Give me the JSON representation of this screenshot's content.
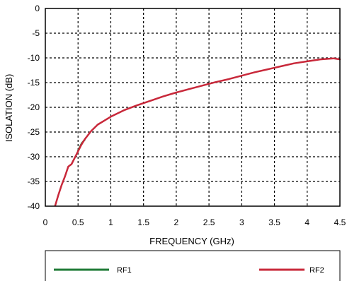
{
  "chart_data": {
    "type": "line",
    "title": "",
    "xlabel": "FREQUENCY (GHz)",
    "ylabel": "ISOLATION (dB)",
    "xlim": [
      0,
      4.5
    ],
    "ylim": [
      -40,
      0
    ],
    "xticks": [
      "0",
      "0.5",
      "1",
      "1.5",
      "2",
      "2.5",
      "3",
      "3.5",
      "4",
      "4.5"
    ],
    "yticks": [
      "0",
      "-5",
      "-10",
      "-15",
      "-20",
      "-25",
      "-30",
      "-35",
      "-40"
    ],
    "grid": true,
    "legend_position": "bottom",
    "series": [
      {
        "name": "RF1",
        "color": "#1e7a35",
        "x": [
          0.5,
          0.52,
          0.54,
          0.56,
          0.58,
          0.6
        ],
        "y": [
          -28.8,
          -28.2,
          -27.7,
          -27.2,
          -26.9,
          -26.6
        ]
      },
      {
        "name": "RF2",
        "color": "#c8283a",
        "x": [
          0.15,
          0.2,
          0.25,
          0.3,
          0.35,
          0.4,
          0.45,
          0.5,
          0.55,
          0.6,
          0.7,
          0.8,
          0.9,
          1.0,
          1.2,
          1.4,
          1.6,
          1.8,
          2.0,
          2.2,
          2.4,
          2.6,
          2.8,
          3.0,
          3.2,
          3.4,
          3.6,
          3.8,
          4.0,
          4.2,
          4.4,
          4.5
        ],
        "y": [
          -39.9,
          -37.7,
          -35.7,
          -34.0,
          -32.0,
          -31.5,
          -30.2,
          -28.9,
          -27.6,
          -26.5,
          -24.8,
          -23.5,
          -22.7,
          -21.9,
          -20.6,
          -19.6,
          -18.7,
          -17.8,
          -17.0,
          -16.3,
          -15.6,
          -14.9,
          -14.3,
          -13.6,
          -12.9,
          -12.3,
          -11.7,
          -11.1,
          -10.7,
          -10.3,
          -10.1,
          -10.3
        ]
      }
    ]
  }
}
